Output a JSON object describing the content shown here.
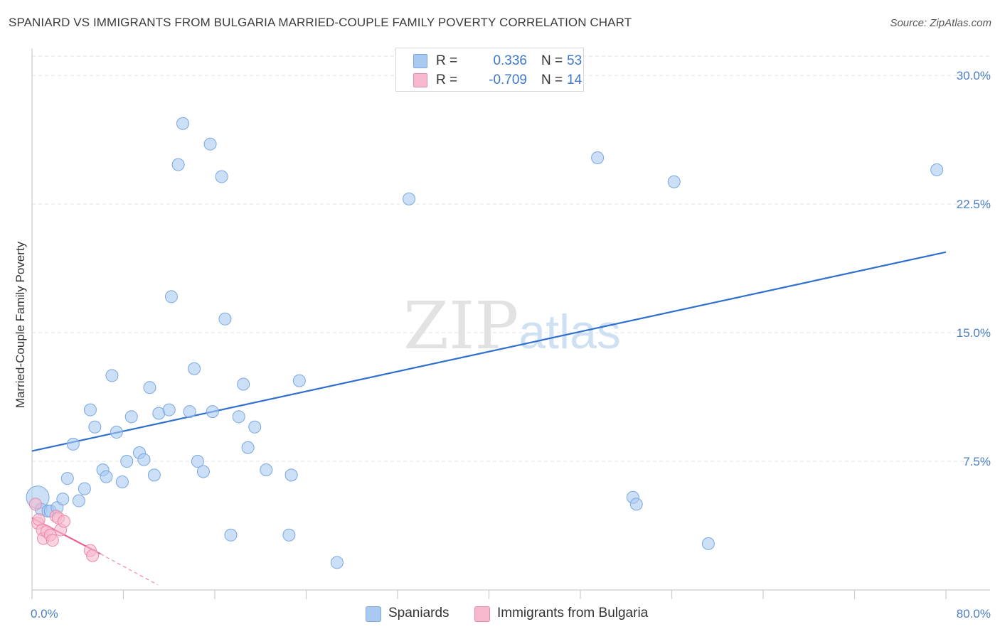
{
  "chart_data": {
    "type": "scatter",
    "title": "SPANIARD VS IMMIGRANTS FROM BULGARIA MARRIED-COUPLE FAMILY POVERTY CORRELATION CHART",
    "source": "Source: ZipAtlas.com",
    "xlabel": "",
    "ylabel": "Married-Couple Family Poverty",
    "xlim": [
      0,
      80
    ],
    "ylim": [
      0,
      31.5
    ],
    "x_tick_labels": [
      "0.0%",
      "80.0%"
    ],
    "y_ticks": [
      {
        "value": 7.5,
        "label": "7.5%"
      },
      {
        "value": 15,
        "label": "15.0%"
      },
      {
        "value": 22.5,
        "label": "22.5%"
      },
      {
        "value": 30,
        "label": "30.0%"
      }
    ],
    "watermark": {
      "bold": "ZIP",
      "light": "atlas"
    },
    "series": [
      {
        "name": "Spaniards",
        "color": "#a9c9f1",
        "stroke": "#7aa7de",
        "line_color": "#2f6fce",
        "R": "0.336",
        "N": "53",
        "trend": {
          "x": [
            0,
            80
          ],
          "y": [
            8.1,
            19.7
          ]
        },
        "points": [
          [
            0.5,
            5.4
          ],
          [
            0.8,
            4.7
          ],
          [
            1.4,
            4.6
          ],
          [
            1.6,
            4.6
          ],
          [
            2.2,
            4.8
          ],
          [
            2.7,
            5.3
          ],
          [
            3.1,
            6.5
          ],
          [
            3.6,
            8.5
          ],
          [
            4.1,
            5.2
          ],
          [
            4.6,
            5.9
          ],
          [
            5.1,
            10.5
          ],
          [
            5.5,
            9.5
          ],
          [
            6.2,
            7.0
          ],
          [
            6.5,
            6.6
          ],
          [
            7.0,
            12.5
          ],
          [
            7.4,
            9.2
          ],
          [
            7.9,
            6.3
          ],
          [
            8.3,
            7.5
          ],
          [
            8.7,
            10.1
          ],
          [
            9.4,
            8.0
          ],
          [
            9.8,
            7.6
          ],
          [
            10.3,
            11.8
          ],
          [
            10.7,
            6.7
          ],
          [
            11.1,
            10.3
          ],
          [
            12.0,
            10.5
          ],
          [
            12.2,
            17.1
          ],
          [
            12.8,
            24.8
          ],
          [
            13.2,
            27.2
          ],
          [
            13.8,
            10.4
          ],
          [
            14.2,
            12.9
          ],
          [
            14.5,
            7.5
          ],
          [
            15.0,
            6.9
          ],
          [
            15.6,
            26.0
          ],
          [
            15.8,
            10.4
          ],
          [
            16.6,
            24.1
          ],
          [
            16.9,
            15.8
          ],
          [
            17.4,
            3.2
          ],
          [
            18.1,
            10.1
          ],
          [
            18.5,
            12.0
          ],
          [
            18.9,
            8.3
          ],
          [
            19.5,
            9.5
          ],
          [
            20.5,
            7.0
          ],
          [
            22.5,
            3.2
          ],
          [
            22.7,
            6.7
          ],
          [
            23.4,
            12.2
          ],
          [
            26.7,
            1.6
          ],
          [
            33.0,
            22.8
          ],
          [
            49.5,
            25.2
          ],
          [
            52.6,
            5.4
          ],
          [
            52.9,
            5.0
          ],
          [
            56.2,
            23.8
          ],
          [
            59.2,
            2.7
          ],
          [
            79.2,
            24.5
          ]
        ],
        "sizes": {
          "0": 32
        }
      },
      {
        "name": "Immigrants from Bulgaria",
        "color": "#f7b8cd",
        "stroke": "#e98aaa",
        "line_color": "#e8608b",
        "R": "-0.709",
        "N": "14",
        "trend": {
          "x": [
            0,
            6
          ],
          "y": [
            4.2,
            2.1
          ]
        },
        "trend_dashed": {
          "x": [
            6,
            11
          ],
          "y": [
            2.1,
            0.3
          ]
        },
        "points": [
          [
            0.3,
            5.0
          ],
          [
            0.5,
            3.9
          ],
          [
            0.6,
            4.1
          ],
          [
            0.9,
            3.5
          ],
          [
            1.0,
            3.0
          ],
          [
            1.3,
            3.4
          ],
          [
            1.6,
            3.2
          ],
          [
            1.8,
            2.9
          ],
          [
            2.1,
            4.3
          ],
          [
            2.3,
            4.2
          ],
          [
            2.5,
            3.5
          ],
          [
            2.8,
            4.0
          ],
          [
            5.1,
            2.3
          ],
          [
            5.3,
            2.0
          ]
        ]
      }
    ]
  }
}
